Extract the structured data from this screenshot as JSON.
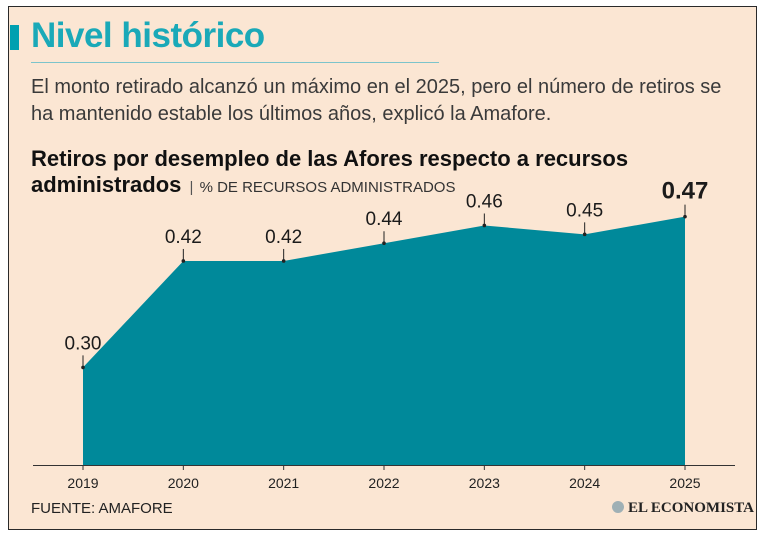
{
  "headline": "Nivel histórico",
  "subtitle": "El monto retirado alcanzó un máximo en el 2025, pero el número de retiros se ha mantenido estable los últimos años, explicó la Amafore.",
  "chart_title": "Retiros por desempleo de las Afores respecto a recursos administrados",
  "chart_unit": "% DE RECURSOS ADMINISTRADOS",
  "separator": "|",
  "source": "FUENTE: AMAFORE",
  "logo": "EL ECONOMISTA",
  "colors": {
    "area": "#00899a",
    "headline": "#1aa9b8",
    "background": "#fbe6d3"
  },
  "chart_data": {
    "type": "area",
    "title": "Retiros por desempleo de las Afores respecto a recursos administrados",
    "ylabel": "% DE RECURSOS ADMINISTRADOS",
    "categories": [
      "2019",
      "2020",
      "2021",
      "2022",
      "2023",
      "2024",
      "2025"
    ],
    "values": [
      0.3,
      0.42,
      0.42,
      0.44,
      0.46,
      0.45,
      0.47
    ],
    "labels": [
      "0.30",
      "0.42",
      "0.42",
      "0.44",
      "0.46",
      "0.45",
      "0.47"
    ],
    "highlight_last": true,
    "ylim": [
      0.19,
      0.5
    ],
    "grid": false
  }
}
